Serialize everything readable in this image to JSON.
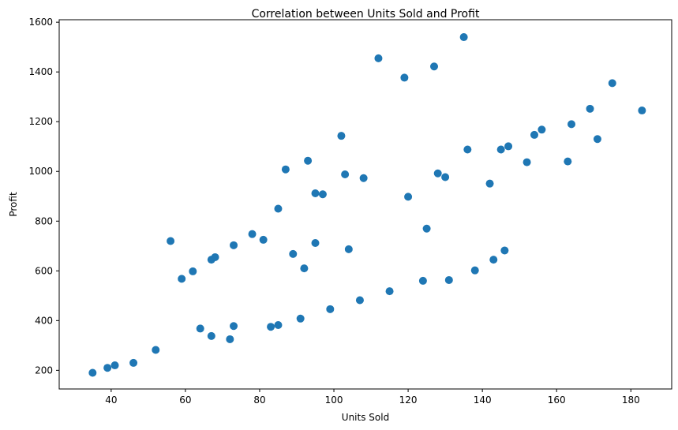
{
  "chart_data": {
    "type": "scatter",
    "title": "Correlation between Units Sold and Profit",
    "xlabel": "Units Sold",
    "ylabel": "Profit",
    "xlim": [
      26,
      191
    ],
    "ylim": [
      125,
      1610
    ],
    "xticks": [
      40,
      60,
      80,
      100,
      120,
      140,
      160,
      180
    ],
    "yticks": [
      200,
      400,
      600,
      800,
      1000,
      1200,
      1400,
      1600
    ],
    "grid": false,
    "marker_color": "#1f77b4",
    "series": [
      {
        "points": [
          [
            35,
            190
          ],
          [
            39,
            210
          ],
          [
            41,
            220
          ],
          [
            46,
            230
          ],
          [
            52,
            282
          ],
          [
            56,
            720
          ],
          [
            59,
            568
          ],
          [
            62,
            598
          ],
          [
            64,
            368
          ],
          [
            67,
            338
          ],
          [
            67,
            645
          ],
          [
            68,
            655
          ],
          [
            72,
            325
          ],
          [
            73,
            378
          ],
          [
            73,
            703
          ],
          [
            78,
            748
          ],
          [
            81,
            725
          ],
          [
            83,
            375
          ],
          [
            85,
            382
          ],
          [
            85,
            850
          ],
          [
            87,
            1008
          ],
          [
            89,
            668
          ],
          [
            91,
            408
          ],
          [
            92,
            610
          ],
          [
            93,
            1043
          ],
          [
            95,
            712
          ],
          [
            95,
            912
          ],
          [
            97,
            908
          ],
          [
            99,
            446
          ],
          [
            102,
            1143
          ],
          [
            103,
            988
          ],
          [
            104,
            687
          ],
          [
            107,
            482
          ],
          [
            108,
            973
          ],
          [
            112,
            1455
          ],
          [
            115,
            518
          ],
          [
            119,
            1377
          ],
          [
            120,
            898
          ],
          [
            124,
            560
          ],
          [
            125,
            770
          ],
          [
            127,
            1422
          ],
          [
            128,
            992
          ],
          [
            130,
            977
          ],
          [
            131,
            563
          ],
          [
            135,
            1540
          ],
          [
            136,
            1088
          ],
          [
            138,
            602
          ],
          [
            142,
            951
          ],
          [
            143,
            645
          ],
          [
            145,
            1088
          ],
          [
            146,
            682
          ],
          [
            147,
            1101
          ],
          [
            152,
            1037
          ],
          [
            154,
            1147
          ],
          [
            156,
            1168
          ],
          [
            163,
            1040
          ],
          [
            164,
            1190
          ],
          [
            169,
            1252
          ],
          [
            171,
            1130
          ],
          [
            175,
            1355
          ],
          [
            183,
            1245
          ]
        ]
      }
    ]
  }
}
